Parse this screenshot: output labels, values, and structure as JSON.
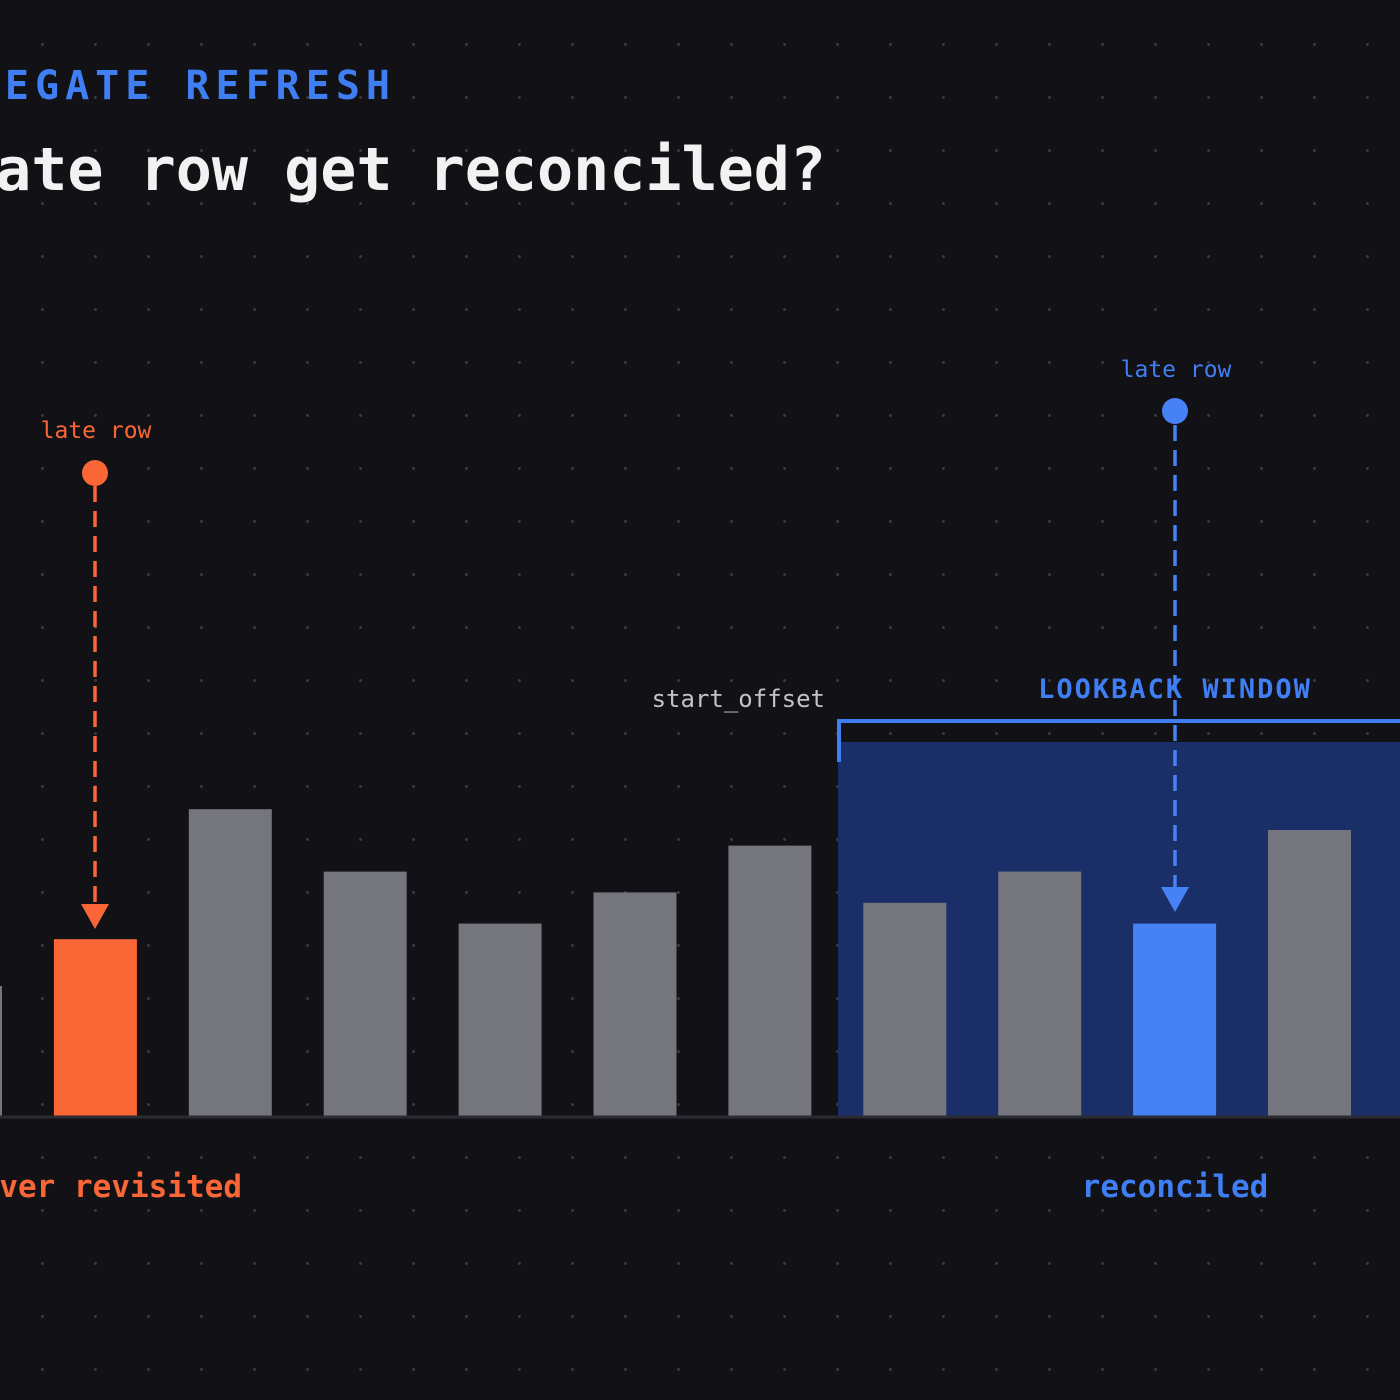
{
  "header": {
    "eyebrow": "EGATE REFRESH",
    "headline": "ate row get reconciled?"
  },
  "annotations": {
    "left_marker_label": "late row",
    "right_marker_label": "late row",
    "start_offset_label": "start_offset",
    "window_label": "LOOKBACK WINDOW",
    "left_outcome": "ver revisited",
    "right_outcome": "reconciled"
  },
  "colors": {
    "background": "#111116",
    "bar_default": "#74757d",
    "late_missed": "#fb6636",
    "late_reconciled": "#4682f6",
    "accent_blue": "#3f7ef3",
    "window_fill": "#1a2e68"
  },
  "chart_data": {
    "type": "bar",
    "values": [
      25,
      34,
      59,
      47,
      37,
      43,
      52,
      41,
      47,
      37,
      55
    ],
    "highlight": {
      "1": "late_missed",
      "9": "late_reconciled"
    },
    "lookback_window_bars": [
      7,
      8,
      9,
      10
    ]
  }
}
